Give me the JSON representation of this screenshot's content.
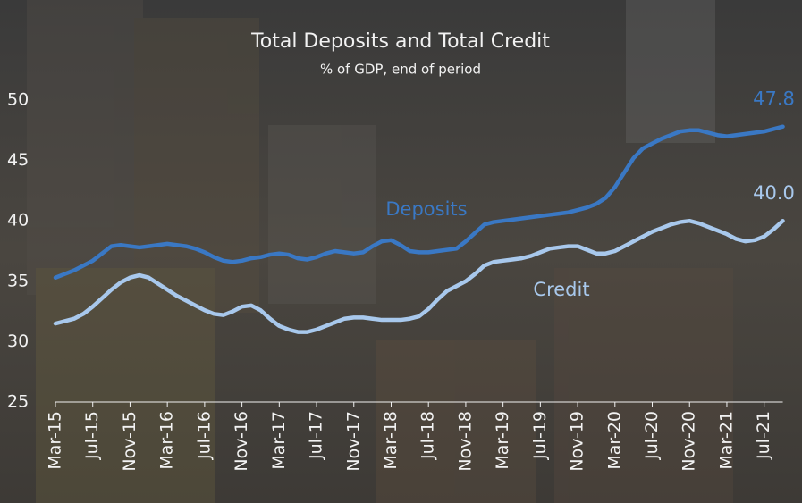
{
  "chart_data": {
    "type": "line",
    "title": "Total Deposits and Total Credit",
    "subtitle": "% of GDP, end of period",
    "categories": [
      "Mar-15",
      null,
      null,
      null,
      "Jul-15",
      null,
      null,
      null,
      "Nov-15",
      null,
      null,
      null,
      "Mar-16",
      null,
      null,
      null,
      "Jul-16",
      null,
      null,
      null,
      "Nov-16",
      null,
      null,
      null,
      "Mar-17",
      null,
      null,
      null,
      "Jul-17",
      null,
      null,
      null,
      "Nov-17",
      null,
      null,
      null,
      "Mar-18",
      null,
      null,
      null,
      "Jul-18",
      null,
      null,
      null,
      "Nov-18",
      null,
      null,
      null,
      "Mar-19",
      null,
      null,
      null,
      "Jul-19",
      null,
      null,
      null,
      "Nov-19",
      null,
      null,
      null,
      "Mar-20",
      null,
      null,
      null,
      "Jul-20",
      null,
      null,
      null,
      "Nov-20",
      null,
      null,
      null,
      "Mar-21",
      null,
      null,
      null,
      "Jul-21",
      null,
      null
    ],
    "series": [
      {
        "name": "Deposits",
        "color": "#3a78c4",
        "values": [
          35.3,
          35.6,
          35.9,
          36.3,
          36.7,
          37.3,
          37.9,
          38.0,
          37.9,
          37.8,
          37.9,
          38.0,
          38.1,
          38.0,
          37.9,
          37.7,
          37.4,
          37.0,
          36.7,
          36.6,
          36.7,
          36.9,
          37.0,
          37.2,
          37.3,
          37.2,
          36.9,
          36.8,
          37.0,
          37.3,
          37.5,
          37.4,
          37.3,
          37.4,
          37.9,
          38.3,
          38.4,
          38.0,
          37.5,
          37.4,
          37.4,
          37.5,
          37.6,
          37.7,
          38.3,
          39.0,
          39.7,
          39.9,
          40.0,
          40.1,
          40.2,
          40.3,
          40.4,
          40.5,
          40.6,
          40.7,
          40.9,
          41.1,
          41.4,
          41.9,
          42.8,
          44.0,
          45.2,
          46.0,
          46.4,
          46.8,
          47.1,
          47.4,
          47.5,
          47.5,
          47.3,
          47.1,
          47.0,
          47.1,
          47.2,
          47.3,
          47.4,
          47.6,
          47.8
        ],
        "value_labels": [
          null,
          null,
          null,
          null,
          null,
          null,
          null,
          null,
          null,
          null,
          null,
          null,
          null,
          null,
          null,
          null,
          null,
          null,
          null,
          null,
          null,
          null,
          null,
          null,
          null,
          null,
          null,
          null,
          null,
          null,
          null,
          null,
          null,
          null,
          null,
          null,
          null,
          null,
          null,
          null,
          null,
          null,
          null,
          null,
          null,
          null,
          null,
          null,
          null,
          null,
          null,
          null,
          null,
          null,
          null,
          null,
          null,
          null,
          null,
          null,
          null,
          null,
          null,
          null,
          null,
          null,
          null,
          null,
          null,
          null,
          null,
          null,
          null,
          null,
          null,
          null,
          null,
          null,
          "47.8"
        ]
      },
      {
        "name": "Credit",
        "color": "#a8c8ec",
        "values": [
          31.5,
          31.7,
          31.9,
          32.3,
          32.9,
          33.6,
          34.3,
          34.9,
          35.3,
          35.5,
          35.3,
          34.8,
          34.3,
          33.8,
          33.4,
          33.0,
          32.6,
          32.3,
          32.2,
          32.5,
          32.9,
          33.0,
          32.6,
          31.9,
          31.3,
          31.0,
          30.8,
          30.8,
          31.0,
          31.3,
          31.6,
          31.9,
          32.0,
          32.0,
          31.9,
          31.8,
          31.8,
          31.8,
          31.9,
          32.1,
          32.7,
          33.5,
          34.2,
          34.6,
          35.0,
          35.6,
          36.3,
          36.6,
          36.7,
          36.8,
          36.9,
          37.1,
          37.4,
          37.7,
          37.8,
          37.9,
          37.9,
          37.6,
          37.3,
          37.3,
          37.5,
          37.9,
          38.3,
          38.7,
          39.1,
          39.4,
          39.7,
          39.9,
          40.0,
          39.8,
          39.5,
          39.2,
          38.9,
          38.5,
          38.3,
          38.4,
          38.7,
          39.3,
          40.0
        ],
        "value_labels": [
          null,
          null,
          null,
          null,
          null,
          null,
          null,
          null,
          null,
          null,
          null,
          null,
          null,
          null,
          null,
          null,
          null,
          null,
          null,
          null,
          null,
          null,
          null,
          null,
          null,
          null,
          null,
          null,
          null,
          null,
          null,
          null,
          null,
          null,
          null,
          null,
          null,
          null,
          null,
          null,
          null,
          null,
          null,
          null,
          null,
          null,
          null,
          null,
          null,
          null,
          null,
          null,
          null,
          null,
          null,
          null,
          null,
          null,
          null,
          null,
          null,
          null,
          null,
          null,
          null,
          null,
          null,
          null,
          null,
          null,
          null,
          null,
          null,
          null,
          null,
          null,
          null,
          null,
          "40.0"
        ]
      }
    ],
    "ylim": [
      25,
      50
    ],
    "yticks": [
      25,
      30,
      35,
      40,
      45,
      50
    ],
    "grid": false
  }
}
